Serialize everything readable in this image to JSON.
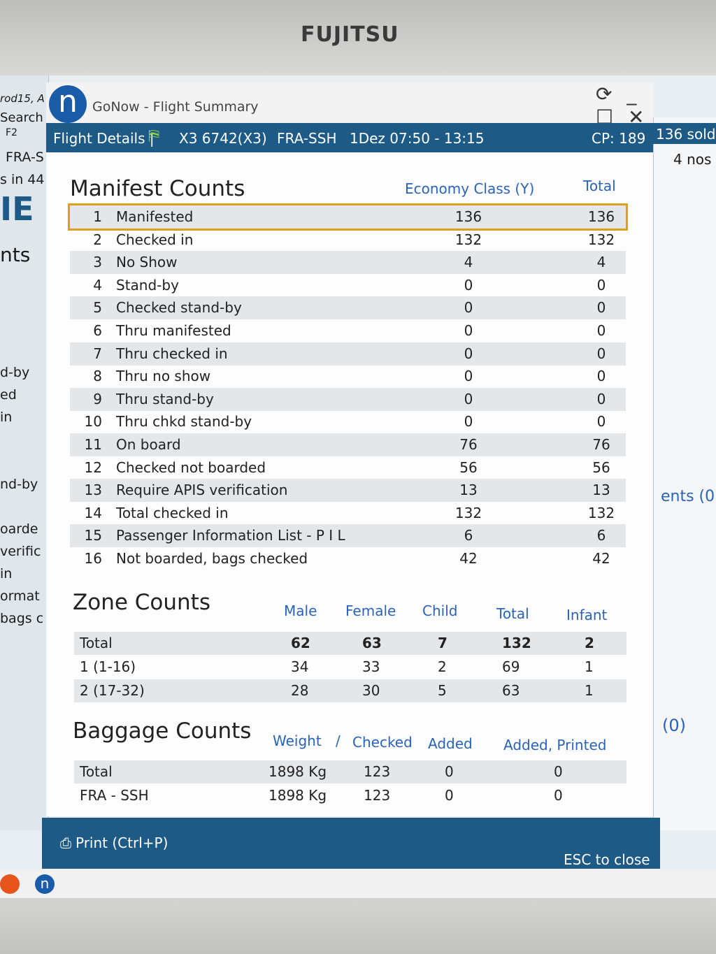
{
  "monitor": {
    "brand": "FUJITSU"
  },
  "background_app": {
    "left_fragments": [
      "rod15, A",
      "Search",
      "F2",
      "FRA-S",
      "s in 44",
      "IE",
      "nts",
      "d-by",
      "ed",
      "in",
      "nd-by",
      "oarde",
      "verific",
      "in",
      "ormat",
      "bags c"
    ],
    "right_fragments": [
      "136 sold",
      "4 nos",
      "ents (0",
      "(0)"
    ]
  },
  "window": {
    "app_title": "GoNow - Flight Summary",
    "logo_letter": "n",
    "controls": "⟳ _ ☐ ✕"
  },
  "header": {
    "label": "Flight Details |",
    "flight": "X3 6742(X3)",
    "route": "FRA-SSH",
    "date_time": "1Dez 07:50 - 13:15",
    "cp": "CP: 189"
  },
  "manifest": {
    "title": "Manifest Counts",
    "col_economy": "Economy Class (Y)",
    "col_total": "Total",
    "rows": [
      {
        "idx": "1",
        "label": "Manifested",
        "eco": "136",
        "total": "136"
      },
      {
        "idx": "2",
        "label": "Checked in",
        "eco": "132",
        "total": "132"
      },
      {
        "idx": "3",
        "label": "No Show",
        "eco": "4",
        "total": "4"
      },
      {
        "idx": "4",
        "label": "Stand-by",
        "eco": "0",
        "total": "0"
      },
      {
        "idx": "5",
        "label": "Checked stand-by",
        "eco": "0",
        "total": "0"
      },
      {
        "idx": "6",
        "label": "Thru manifested",
        "eco": "0",
        "total": "0"
      },
      {
        "idx": "7",
        "label": "Thru checked in",
        "eco": "0",
        "total": "0"
      },
      {
        "idx": "8",
        "label": "Thru no show",
        "eco": "0",
        "total": "0"
      },
      {
        "idx": "9",
        "label": "Thru stand-by",
        "eco": "0",
        "total": "0"
      },
      {
        "idx": "10",
        "label": "Thru chkd stand-by",
        "eco": "0",
        "total": "0"
      },
      {
        "idx": "11",
        "label": "On board",
        "eco": "76",
        "total": "76"
      },
      {
        "idx": "12",
        "label": "Checked not boarded",
        "eco": "56",
        "total": "56"
      },
      {
        "idx": "13",
        "label": "Require APIS verification",
        "eco": "13",
        "total": "13"
      },
      {
        "idx": "14",
        "label": "Total checked in",
        "eco": "132",
        "total": "132"
      },
      {
        "idx": "15",
        "label": "Passenger Information List - P I L",
        "eco": "6",
        "total": "6"
      },
      {
        "idx": "16",
        "label": "Not boarded, bags checked",
        "eco": "42",
        "total": "42"
      }
    ]
  },
  "zones": {
    "title": "Zone Counts",
    "headers": [
      "Male",
      "Female",
      "Child",
      "Total",
      "Infant"
    ],
    "rows": [
      {
        "name": "Total",
        "male": "62",
        "female": "63",
        "child": "7",
        "total": "132",
        "infant": "2"
      },
      {
        "name": "1 (1-16)",
        "male": "34",
        "female": "33",
        "child": "2",
        "total": "69",
        "infant": "1"
      },
      {
        "name": "2 (17-32)",
        "male": "28",
        "female": "30",
        "child": "5",
        "total": "63",
        "infant": "1"
      }
    ]
  },
  "baggage": {
    "title": "Baggage Counts",
    "headers": [
      "Weight",
      "/",
      "Checked",
      "Added",
      "Added, Printed"
    ],
    "rows": [
      {
        "name": "Total",
        "weight": "1898 Kg",
        "checked": "123",
        "added": "0",
        "printed": "0"
      },
      {
        "name": "FRA - SSH",
        "weight": "1898 Kg",
        "checked": "123",
        "added": "0",
        "printed": "0"
      }
    ]
  },
  "footer": {
    "print_label": "Print (Ctrl+P)",
    "esc_label": "ESC to close"
  },
  "colors": {
    "header_blue": "#1d5a86",
    "accent_blue": "#2b63b8",
    "highlight": "#d9a11c"
  }
}
